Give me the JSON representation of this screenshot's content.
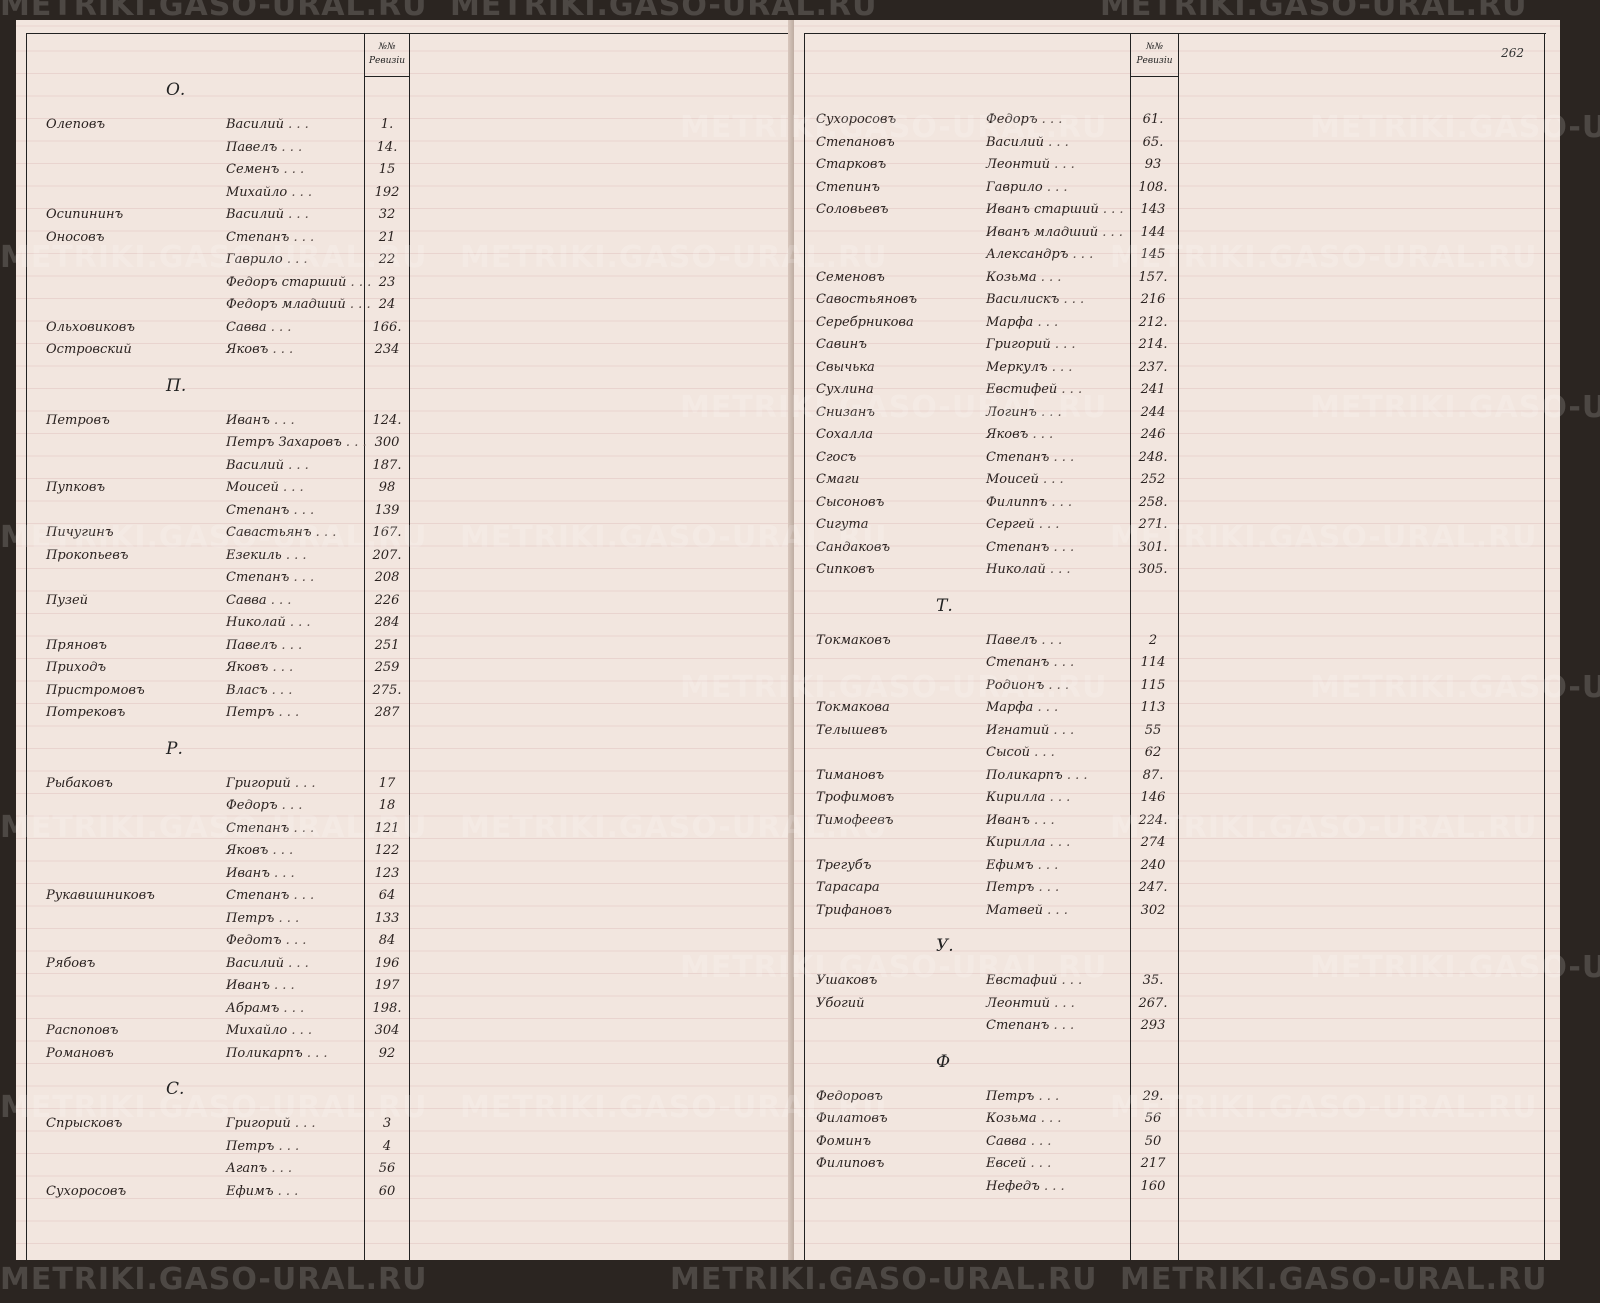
{
  "watermark": "METRIKI.GASO-URAL.RU",
  "column_header": [
    "№№",
    "Ревизіи"
  ],
  "right_page_number": "262",
  "left_page": [
    {
      "letter": "О."
    },
    {
      "surname": "Олеповъ",
      "given": "Василий",
      "num": "1."
    },
    {
      "surname": "",
      "given": "Павелъ",
      "num": "14."
    },
    {
      "surname": "",
      "given": "Семенъ",
      "num": "15"
    },
    {
      "surname": "",
      "given": "Михайло",
      "num": "192"
    },
    {
      "surname": "Осипининъ",
      "given": "Василий",
      "num": "32"
    },
    {
      "surname": "Оносовъ",
      "given": "Степанъ",
      "num": "21"
    },
    {
      "surname": "",
      "given": "Гаврило",
      "num": "22"
    },
    {
      "surname": "",
      "given": "Федоръ старший",
      "num": "23"
    },
    {
      "surname": "",
      "given": "Федоръ младший",
      "num": "24"
    },
    {
      "surname": "Ольховиковъ",
      "given": "Савва",
      "num": "166."
    },
    {
      "surname": "Островский",
      "given": "Яковъ",
      "num": "234"
    },
    {
      "letter": "П."
    },
    {
      "surname": "Петровъ",
      "given": "Иванъ",
      "num": "124."
    },
    {
      "surname": "",
      "given": "Петръ Захаровъ",
      "num": "300"
    },
    {
      "surname": "",
      "given": "Василий",
      "num": "187."
    },
    {
      "surname": "Пупковъ",
      "given": "Моисей",
      "num": "98"
    },
    {
      "surname": "",
      "given": "Степанъ",
      "num": "139"
    },
    {
      "surname": "Пичугинъ",
      "given": "Савастьянъ",
      "num": "167."
    },
    {
      "surname": "Прокопьевъ",
      "given": "Езекиль",
      "num": "207."
    },
    {
      "surname": "",
      "given": "Степанъ",
      "num": "208"
    },
    {
      "surname": "Пузей",
      "given": "Савва",
      "num": "226"
    },
    {
      "surname": "",
      "given": "Николай",
      "num": "284"
    },
    {
      "surname": "Пряновъ",
      "given": "Павелъ",
      "num": "251"
    },
    {
      "surname": "Приходъ",
      "given": "Яковъ",
      "num": "259"
    },
    {
      "surname": "Пристромовъ",
      "given": "Власъ",
      "num": "275."
    },
    {
      "surname": "Потрековъ",
      "given": "Петръ",
      "num": "287"
    },
    {
      "letter": "Р."
    },
    {
      "surname": "Рыбаковъ",
      "given": "Григорий",
      "num": "17"
    },
    {
      "surname": "",
      "given": "Федоръ",
      "num": "18"
    },
    {
      "surname": "",
      "given": "Степанъ",
      "num": "121"
    },
    {
      "surname": "",
      "given": "Яковъ",
      "num": "122"
    },
    {
      "surname": "",
      "given": "Иванъ",
      "num": "123"
    },
    {
      "surname": "Рукавишниковъ",
      "given": "Степанъ",
      "num": "64"
    },
    {
      "surname": "",
      "given": "Петръ",
      "num": "133"
    },
    {
      "surname": "",
      "given": "Федотъ",
      "num": "84"
    },
    {
      "surname": "Рябовъ",
      "given": "Василий",
      "num": "196"
    },
    {
      "surname": "",
      "given": "Иванъ",
      "num": "197"
    },
    {
      "surname": "",
      "given": "Абрамъ",
      "num": "198."
    },
    {
      "surname": "Распоповъ",
      "given": "Михайло",
      "num": "304"
    },
    {
      "surname": "Романовъ",
      "given": "Поликарпъ",
      "num": "92"
    },
    {
      "letter": "С."
    },
    {
      "surname": "Спрысковъ",
      "given": "Григорий",
      "num": "3"
    },
    {
      "surname": "",
      "given": "Петръ",
      "num": "4"
    },
    {
      "surname": "",
      "given": "Агапъ",
      "num": "56"
    },
    {
      "surname": "Сухоросовъ",
      "given": "Ефимъ",
      "num": "60"
    }
  ],
  "right_page": [
    {
      "surname": "Сухоросовъ",
      "given": "Федоръ",
      "num": "61."
    },
    {
      "surname": "Степановъ",
      "given": "Василий",
      "num": "65."
    },
    {
      "surname": "Старковъ",
      "given": "Леонтий",
      "num": "93"
    },
    {
      "surname": "Степинъ",
      "given": "Гаврило",
      "num": "108."
    },
    {
      "surname": "Соловьевъ",
      "given": "Иванъ старший",
      "num": "143"
    },
    {
      "surname": "",
      "given": "Иванъ младший",
      "num": "144"
    },
    {
      "surname": "",
      "given": "Александръ",
      "num": "145"
    },
    {
      "surname": "Семеновъ",
      "given": "Козьма",
      "num": "157."
    },
    {
      "surname": "Савостьяновъ",
      "given": "Василискъ",
      "num": "216"
    },
    {
      "surname": "Серебрникова",
      "given": "Марфа",
      "num": "212."
    },
    {
      "surname": "Савинъ",
      "given": "Григорий",
      "num": "214."
    },
    {
      "surname": "Свычька",
      "given": "Меркулъ",
      "num": "237."
    },
    {
      "surname": "Сухлина",
      "given": "Евстифей",
      "num": "241"
    },
    {
      "surname": "Снизанъ",
      "given": "Логинъ",
      "num": "244"
    },
    {
      "surname": "Сохалла",
      "given": "Яковъ",
      "num": "246"
    },
    {
      "surname": "Сгосъ",
      "given": "Степанъ",
      "num": "248."
    },
    {
      "surname": "Смаги",
      "given": "Моисей",
      "num": "252"
    },
    {
      "surname": "Сысоновъ",
      "given": "Филиппъ",
      "num": "258."
    },
    {
      "surname": "Сигута",
      "given": "Сергей",
      "num": "271."
    },
    {
      "surname": "Сандаковъ",
      "given": "Степанъ",
      "num": "301."
    },
    {
      "surname": "Сипковъ",
      "given": "Николай",
      "num": "305."
    },
    {
      "letter": "Т."
    },
    {
      "surname": "Токмаковъ",
      "given": "Павелъ",
      "num": "2"
    },
    {
      "surname": "",
      "given": "Степанъ",
      "num": "114"
    },
    {
      "surname": "",
      "given": "Родионъ",
      "num": "115"
    },
    {
      "surname": "Токмакова",
      "given": "Марфа",
      "num": "113"
    },
    {
      "surname": "Телышевъ",
      "given": "Игнатий",
      "num": "55"
    },
    {
      "surname": "",
      "given": "Сысой",
      "num": "62"
    },
    {
      "surname": "Тимановъ",
      "given": "Поликарпъ",
      "num": "87."
    },
    {
      "surname": "Трофимовъ",
      "given": "Кирилла",
      "num": "146"
    },
    {
      "surname": "Тимофеевъ",
      "given": "Иванъ",
      "num": "224."
    },
    {
      "surname": "",
      "given": "Кирилла",
      "num": "274"
    },
    {
      "surname": "Трегубъ",
      "given": "Ефимъ",
      "num": "240"
    },
    {
      "surname": "Тарасара",
      "given": "Петръ",
      "num": "247."
    },
    {
      "surname": "Трифановъ",
      "given": "Матвей",
      "num": "302"
    },
    {
      "letter": "У."
    },
    {
      "surname": "Ушаковъ",
      "given": "Евстафий",
      "num": "35."
    },
    {
      "surname": "Убогий",
      "given": "Леонтий",
      "num": "267."
    },
    {
      "surname": "",
      "given": "Степанъ",
      "num": "293"
    },
    {
      "letter": "Ф"
    },
    {
      "surname": "Федоровъ",
      "given": "Петръ",
      "num": "29."
    },
    {
      "surname": "Филатовъ",
      "given": "Козьма",
      "num": "56"
    },
    {
      "surname": "Фоминъ",
      "given": "Савва",
      "num": "50"
    },
    {
      "surname": "Филиповъ",
      "given": "Евсей",
      "num": "217"
    },
    {
      "surname": "",
      "given": "Нефедъ",
      "num": "160"
    }
  ]
}
